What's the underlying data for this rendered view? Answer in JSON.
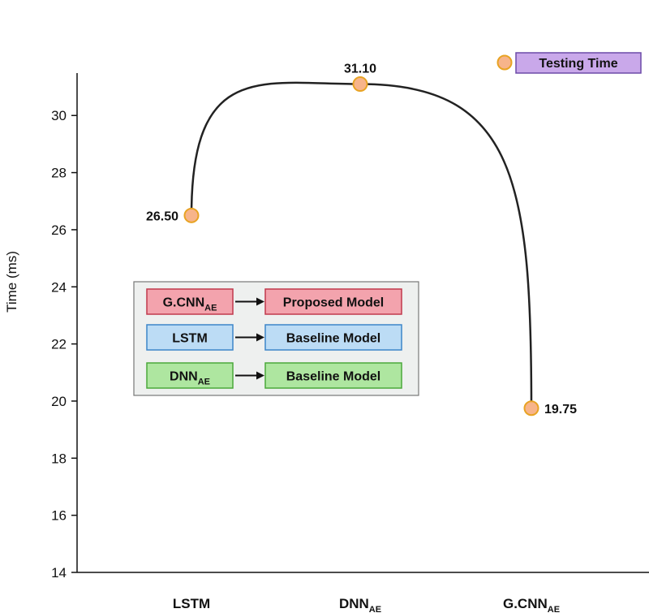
{
  "chart_data": {
    "type": "line",
    "title": "",
    "xlabel": "",
    "ylabel": "Time (ms)",
    "ylim": [
      14,
      31.4
    ],
    "yticks": [
      14,
      16,
      18,
      20,
      22,
      24,
      26,
      28,
      30
    ],
    "categories": [
      {
        "base": "LSTM",
        "sub": ""
      },
      {
        "base": "DNN",
        "sub": "AE"
      },
      {
        "base": "G.CNN",
        "sub": "AE"
      }
    ],
    "series": [
      {
        "name": "Testing Time",
        "values": [
          26.5,
          31.1,
          19.75
        ],
        "labels": [
          "26.50",
          "31.10",
          "19.75"
        ],
        "marker_color": "#f7b48a",
        "marker_edge": "#e8a323"
      }
    ],
    "legend": {
      "position": "top-right",
      "item": "Testing Time",
      "fill": "#c9a8ea",
      "border": "#6c4aa8"
    },
    "model_legend": {
      "position": "center-left",
      "items": [
        {
          "model_base": "G.CNN",
          "model_sub": "AE",
          "role": "Proposed Model",
          "fill": "#f3a3ad",
          "border": "#c0394d"
        },
        {
          "model_base": "LSTM",
          "model_sub": "",
          "role": "Baseline Model",
          "fill": "#bcdcf5",
          "border": "#3d86c9"
        },
        {
          "model_base": "DNN",
          "model_sub": "AE",
          "role": "Baseline Model",
          "fill": "#aee6a0",
          "border": "#4aa83a"
        }
      ]
    },
    "grid": false
  }
}
